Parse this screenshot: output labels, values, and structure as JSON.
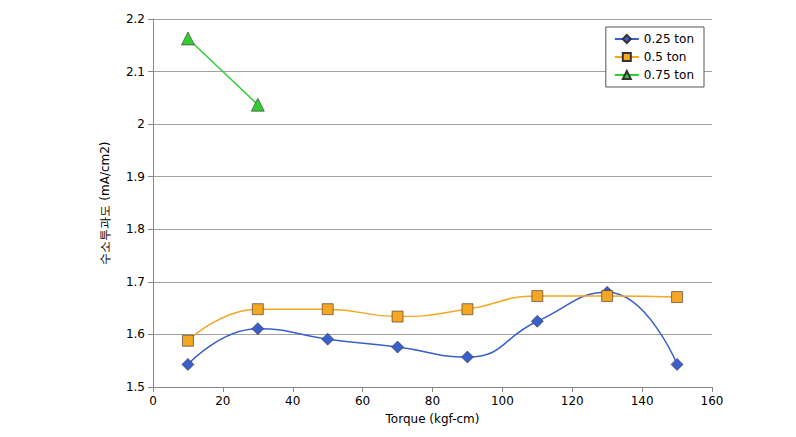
{
  "chart_data": {
    "type": "line",
    "x_label": "Torque (kgf-cm)",
    "y_label": "수소투과도 (mA/cm2)",
    "xlim": [
      0,
      160
    ],
    "xticks": [
      0,
      20,
      40,
      60,
      80,
      100,
      120,
      140,
      160
    ],
    "ylim": [
      1.5,
      2.2
    ],
    "yticks": [
      1.5,
      1.6,
      1.7,
      1.8,
      1.9,
      2,
      2.1,
      2.2
    ],
    "grid": true,
    "legend": "upper right",
    "series": [
      {
        "name": "0.25 ton",
        "color": "#3a5fcd",
        "marker": "diamond",
        "line_style": "smooth",
        "x": [
          10,
          30,
          50,
          70,
          90,
          110,
          130,
          150
        ],
        "values": [
          1.543,
          1.611,
          1.591,
          1.576,
          1.557,
          1.625,
          1.68,
          1.543
        ]
      },
      {
        "name": "0.5 ton",
        "color": "#f5a623",
        "marker": "square",
        "line_style": "smooth",
        "x": [
          10,
          30,
          50,
          70,
          90,
          110,
          130,
          150
        ],
        "values": [
          1.588,
          1.648,
          1.648,
          1.634,
          1.648,
          1.673,
          1.673,
          1.671
        ]
      },
      {
        "name": "0.75 ton",
        "color": "#33cc33",
        "marker": "triangle",
        "line_style": "solid",
        "x": [
          10,
          30
        ],
        "values": [
          2.163,
          2.037
        ]
      }
    ]
  }
}
